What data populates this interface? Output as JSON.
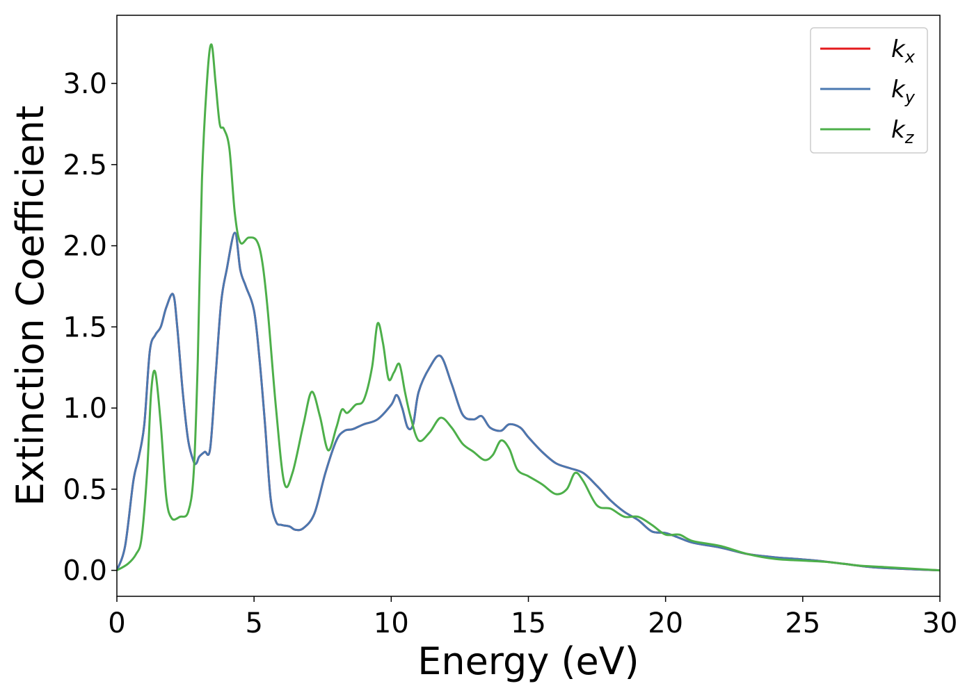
{
  "chart_data": {
    "type": "line",
    "title": "",
    "xlabel": "Energy (eV)",
    "ylabel": "Extinction Coefficient",
    "xlim": [
      0,
      30
    ],
    "ylim": [
      -0.16,
      3.42
    ],
    "xticks": [
      0,
      5,
      10,
      15,
      20,
      25,
      30
    ],
    "xtick_labels": [
      "0",
      "5",
      "10",
      "15",
      "20",
      "25",
      "30"
    ],
    "yticks": [
      0.0,
      0.5,
      1.0,
      1.5,
      2.0,
      2.5,
      3.0
    ],
    "ytick_labels": [
      "0.0",
      "0.5",
      "1.0",
      "1.5",
      "2.0",
      "2.5",
      "3.0"
    ],
    "grid": false,
    "legend_position": "top-right",
    "series": [
      {
        "name": "k_x",
        "legend_base": "k",
        "legend_sub": "x",
        "color": "#e41a1c",
        "x": [
          0,
          0.3,
          0.6,
          0.8,
          1.0,
          1.2,
          1.4,
          1.6,
          1.8,
          2.05,
          2.2,
          2.4,
          2.6,
          2.8,
          2.9,
          3.0,
          3.2,
          3.4,
          3.6,
          3.8,
          4.0,
          4.3,
          4.5,
          4.7,
          5.0,
          5.2,
          5.4,
          5.6,
          5.8,
          6.0,
          6.3,
          6.5,
          6.8,
          7.2,
          7.6,
          8.0,
          8.3,
          8.6,
          9.0,
          9.5,
          10.0,
          10.2,
          10.4,
          10.6,
          10.8,
          11.0,
          11.4,
          11.8,
          12.2,
          12.6,
          13.0,
          13.3,
          13.6,
          14.0,
          14.3,
          14.7,
          15.0,
          15.5,
          16.0,
          16.5,
          17.0,
          17.5,
          18.0,
          18.5,
          19.0,
          19.5,
          20.0,
          20.5,
          21.0,
          22.0,
          23.0,
          24.0,
          24.8,
          25.5,
          26.5,
          27.5,
          28.5,
          30.0
        ],
        "y": [
          0.0,
          0.15,
          0.55,
          0.7,
          0.9,
          1.35,
          1.45,
          1.5,
          1.62,
          1.7,
          1.5,
          1.1,
          0.8,
          0.67,
          0.66,
          0.7,
          0.73,
          0.75,
          1.2,
          1.65,
          1.85,
          2.08,
          1.85,
          1.75,
          1.6,
          1.3,
          0.9,
          0.45,
          0.3,
          0.28,
          0.27,
          0.25,
          0.26,
          0.35,
          0.6,
          0.8,
          0.86,
          0.87,
          0.9,
          0.93,
          1.02,
          1.08,
          1.0,
          0.88,
          0.9,
          1.1,
          1.25,
          1.32,
          1.15,
          0.96,
          0.93,
          0.95,
          0.88,
          0.86,
          0.9,
          0.88,
          0.82,
          0.73,
          0.66,
          0.63,
          0.6,
          0.52,
          0.43,
          0.36,
          0.31,
          0.24,
          0.23,
          0.2,
          0.17,
          0.14,
          0.1,
          0.08,
          0.07,
          0.06,
          0.04,
          0.02,
          0.01,
          0.0
        ]
      },
      {
        "name": "k_y",
        "legend_base": "k",
        "legend_sub": "y",
        "color": "#4a78b0",
        "x": [
          0,
          0.3,
          0.6,
          0.8,
          1.0,
          1.2,
          1.4,
          1.6,
          1.8,
          2.05,
          2.2,
          2.4,
          2.6,
          2.8,
          2.9,
          3.0,
          3.2,
          3.4,
          3.6,
          3.8,
          4.0,
          4.3,
          4.5,
          4.7,
          5.0,
          5.2,
          5.4,
          5.6,
          5.8,
          6.0,
          6.3,
          6.5,
          6.8,
          7.2,
          7.6,
          8.0,
          8.3,
          8.6,
          9.0,
          9.5,
          10.0,
          10.2,
          10.4,
          10.6,
          10.8,
          11.0,
          11.4,
          11.8,
          12.2,
          12.6,
          13.0,
          13.3,
          13.6,
          14.0,
          14.3,
          14.7,
          15.0,
          15.5,
          16.0,
          16.5,
          17.0,
          17.5,
          18.0,
          18.5,
          19.0,
          19.5,
          20.0,
          20.5,
          21.0,
          22.0,
          23.0,
          24.0,
          24.8,
          25.5,
          26.5,
          27.5,
          28.5,
          30.0
        ],
        "y": [
          0.0,
          0.15,
          0.55,
          0.7,
          0.9,
          1.35,
          1.45,
          1.5,
          1.62,
          1.7,
          1.5,
          1.1,
          0.8,
          0.67,
          0.66,
          0.7,
          0.73,
          0.75,
          1.2,
          1.65,
          1.85,
          2.08,
          1.85,
          1.75,
          1.6,
          1.3,
          0.9,
          0.45,
          0.3,
          0.28,
          0.27,
          0.25,
          0.26,
          0.35,
          0.6,
          0.8,
          0.86,
          0.87,
          0.9,
          0.93,
          1.02,
          1.08,
          1.0,
          0.88,
          0.9,
          1.1,
          1.25,
          1.32,
          1.15,
          0.96,
          0.93,
          0.95,
          0.88,
          0.86,
          0.9,
          0.88,
          0.82,
          0.73,
          0.66,
          0.63,
          0.6,
          0.52,
          0.43,
          0.36,
          0.31,
          0.24,
          0.23,
          0.2,
          0.17,
          0.14,
          0.1,
          0.08,
          0.07,
          0.06,
          0.04,
          0.02,
          0.01,
          0.0
        ]
      },
      {
        "name": "k_z",
        "legend_base": "k",
        "legend_sub": "z",
        "color": "#4daf4a",
        "x": [
          0,
          0.4,
          0.7,
          0.9,
          1.1,
          1.25,
          1.4,
          1.6,
          1.8,
          2.0,
          2.3,
          2.6,
          2.8,
          2.95,
          3.1,
          3.3,
          3.45,
          3.6,
          3.75,
          3.9,
          4.1,
          4.3,
          4.5,
          4.8,
          5.1,
          5.3,
          5.5,
          5.8,
          6.1,
          6.4,
          6.8,
          7.1,
          7.4,
          7.7,
          8.0,
          8.2,
          8.4,
          8.7,
          9.0,
          9.3,
          9.5,
          9.7,
          9.9,
          10.1,
          10.3,
          10.5,
          10.7,
          11.0,
          11.4,
          11.8,
          12.2,
          12.6,
          13.0,
          13.4,
          13.7,
          14.0,
          14.3,
          14.6,
          15.0,
          15.5,
          16.0,
          16.4,
          16.7,
          17.0,
          17.5,
          18.0,
          18.5,
          19.0,
          19.5,
          20.0,
          20.5,
          21.0,
          22.0,
          23.0,
          24.0,
          25.0,
          26.0,
          27.0,
          28.0,
          30.0
        ],
        "y": [
          0.0,
          0.04,
          0.1,
          0.2,
          0.6,
          1.1,
          1.22,
          0.9,
          0.45,
          0.32,
          0.33,
          0.36,
          0.6,
          1.3,
          2.4,
          3.05,
          3.24,
          3.0,
          2.75,
          2.72,
          2.6,
          2.2,
          2.02,
          2.05,
          2.03,
          1.9,
          1.6,
          1.0,
          0.54,
          0.6,
          0.9,
          1.1,
          0.95,
          0.74,
          0.88,
          0.99,
          0.97,
          1.02,
          1.05,
          1.25,
          1.52,
          1.4,
          1.18,
          1.22,
          1.27,
          1.1,
          0.95,
          0.8,
          0.85,
          0.94,
          0.88,
          0.78,
          0.73,
          0.68,
          0.71,
          0.8,
          0.75,
          0.62,
          0.58,
          0.53,
          0.47,
          0.5,
          0.6,
          0.55,
          0.4,
          0.38,
          0.33,
          0.33,
          0.28,
          0.22,
          0.22,
          0.18,
          0.15,
          0.1,
          0.07,
          0.06,
          0.05,
          0.03,
          0.02,
          0.0
        ]
      }
    ]
  }
}
